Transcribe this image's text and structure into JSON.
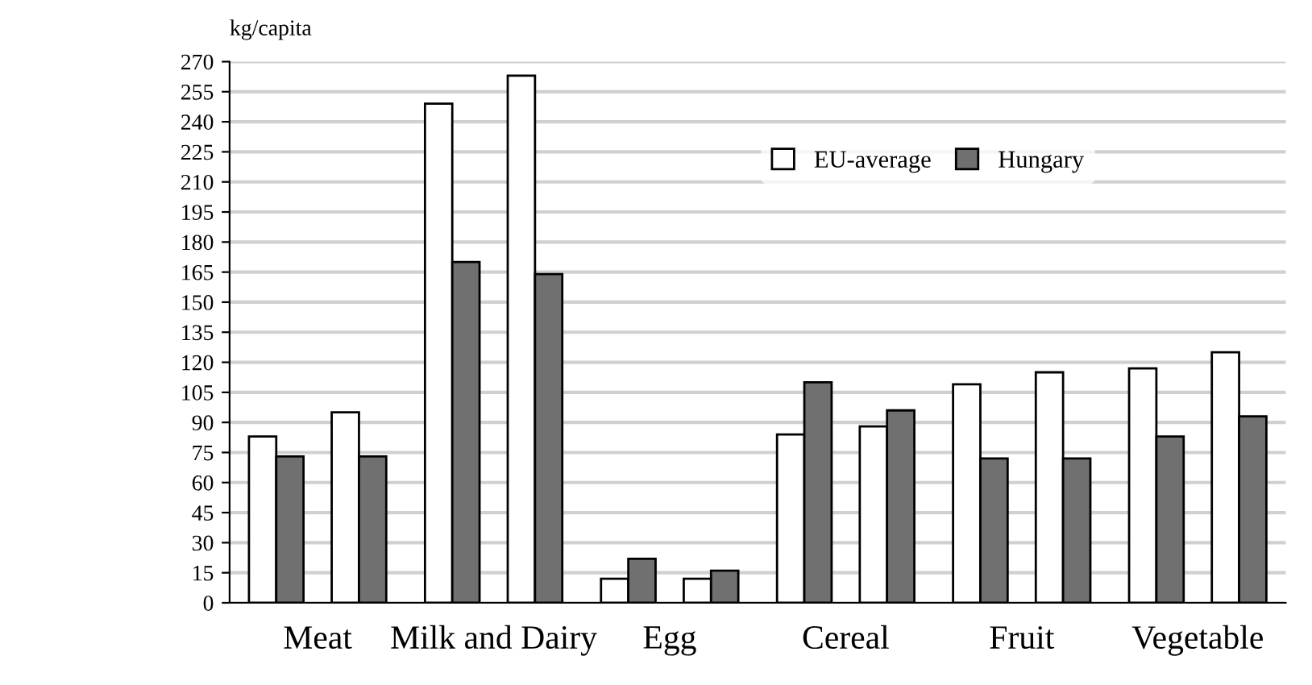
{
  "chart_data": {
    "type": "bar",
    "ylabel": "kg/capita",
    "categories": [
      "Meat",
      "Milk and Dairy",
      "Egg",
      "Cereal",
      "Fruit",
      "Vegetable"
    ],
    "series": [
      {
        "name": "EU-average",
        "color": "#ffffff",
        "values": [
          83,
          249,
          12,
          84,
          109,
          117
        ]
      },
      {
        "name": "Hungary",
        "color": "#707070",
        "values": [
          73,
          170,
          22,
          110,
          72,
          83
        ]
      },
      {
        "color": "#ffffff",
        "values": [
          95,
          263,
          12,
          88,
          115,
          125
        ]
      },
      {
        "color": "#707070",
        "values": [
          73,
          164,
          16,
          96,
          72,
          93
        ]
      }
    ],
    "ylim": [
      0,
      270
    ],
    "yticks": [
      0,
      15,
      30,
      45,
      60,
      75,
      90,
      105,
      120,
      135,
      150,
      165,
      180,
      195,
      210,
      225,
      240,
      255,
      270
    ],
    "grid": "y",
    "legend": "top right"
  }
}
